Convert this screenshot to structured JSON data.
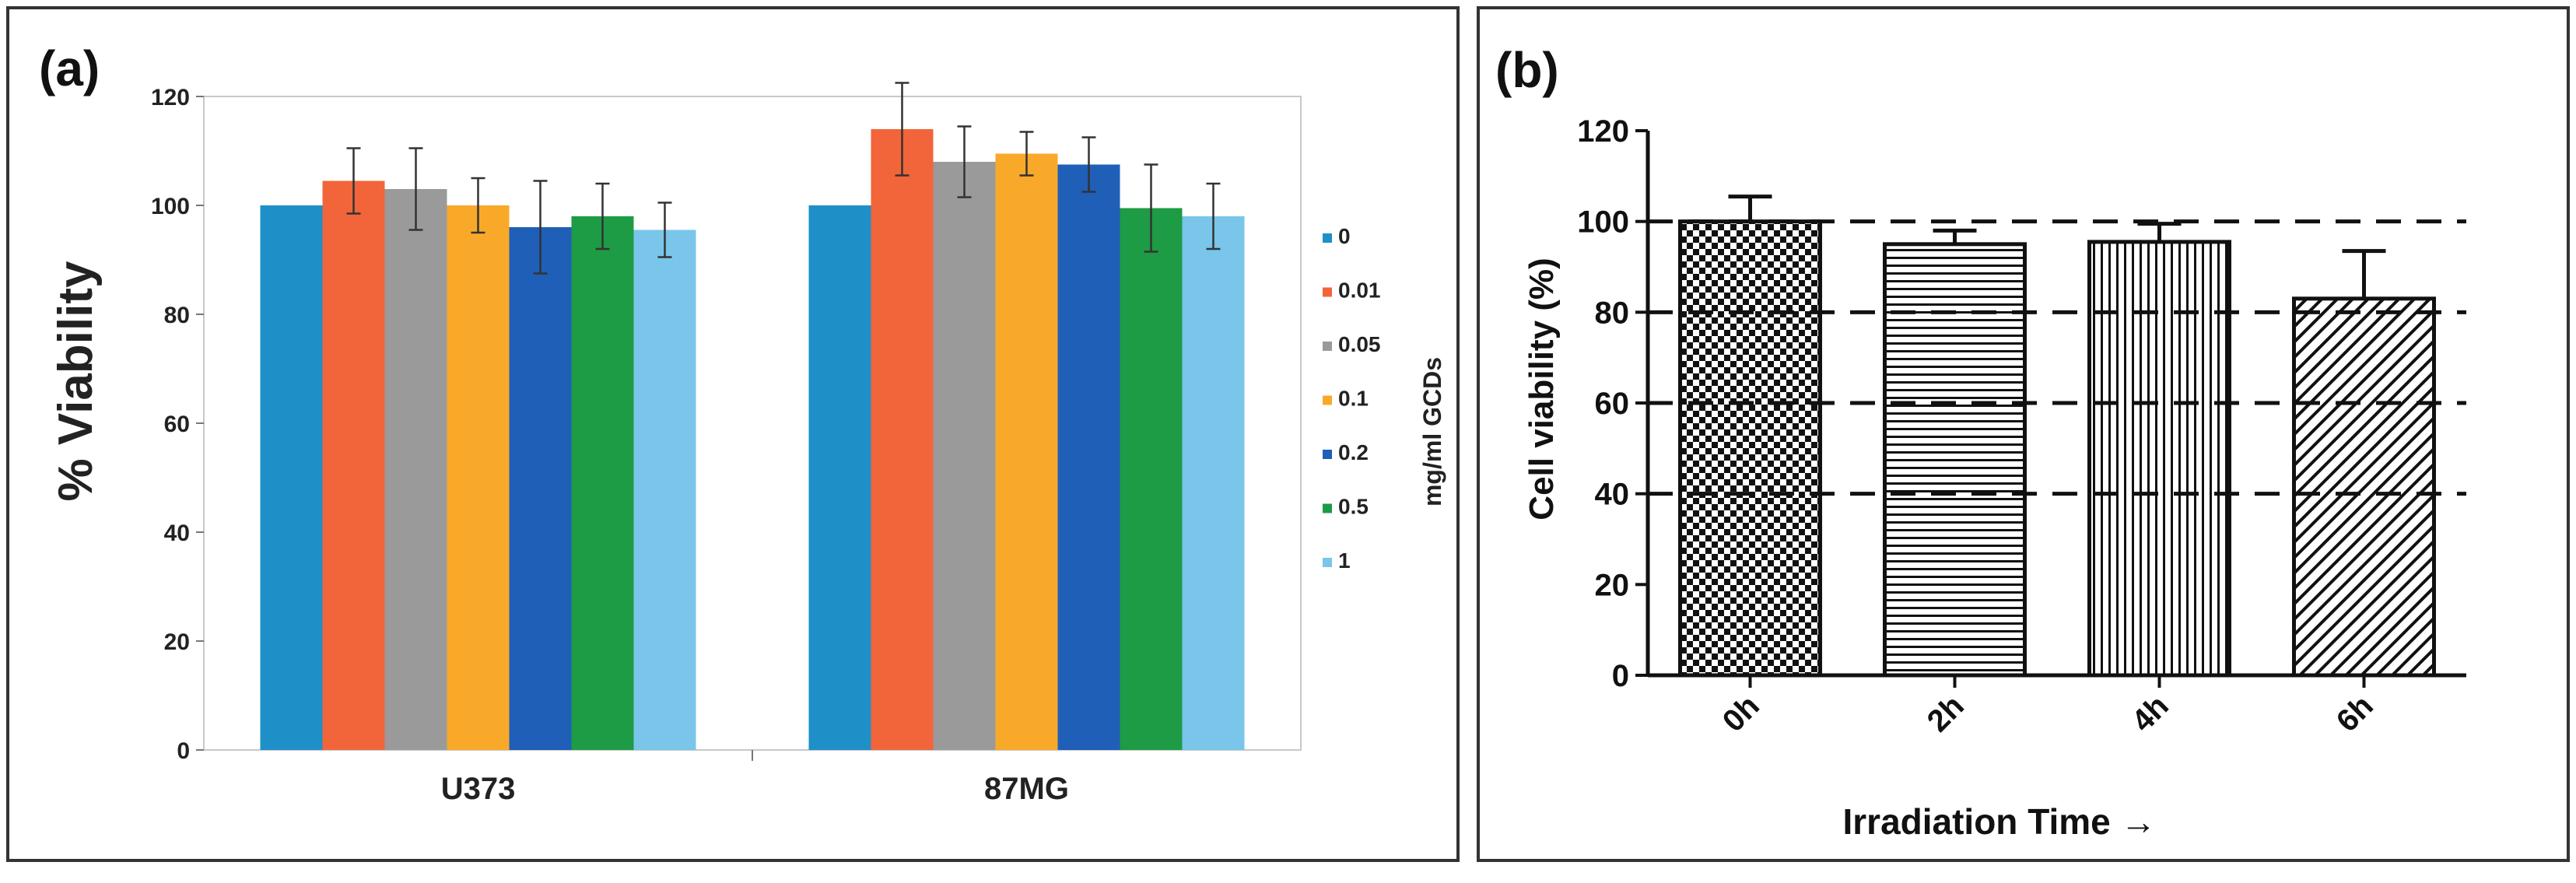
{
  "chart_data": [
    {
      "panel_label": "(a)",
      "type": "bar",
      "title": "",
      "xlabel": "",
      "ylabel": "% Viability",
      "ylim": [
        0,
        120
      ],
      "yticks": [
        0,
        20,
        40,
        60,
        80,
        100,
        120
      ],
      "grid": false,
      "categories": [
        "U373",
        "87MG"
      ],
      "legend_title": "mg/ml GCDs",
      "legend_position": "right",
      "series": [
        {
          "name": "0",
          "color": "#1f8fc8",
          "values": [
            100,
            100
          ],
          "errors": [
            0,
            0
          ]
        },
        {
          "name": "0.01",
          "color": "#f2653a",
          "values": [
            104.5,
            114
          ],
          "errors": [
            6,
            8.5
          ]
        },
        {
          "name": "0.05",
          "color": "#9a9a9a",
          "values": [
            103,
            108
          ],
          "errors": [
            7.5,
            6.5
          ]
        },
        {
          "name": "0.1",
          "color": "#f9a92a",
          "values": [
            100,
            109.5
          ],
          "errors": [
            5,
            4
          ]
        },
        {
          "name": "0.2",
          "color": "#1f5fb8",
          "values": [
            96,
            107.5
          ],
          "errors": [
            8.5,
            5
          ]
        },
        {
          "name": "0.5",
          "color": "#1e9b45",
          "values": [
            98,
            99.5
          ],
          "errors": [
            6,
            8
          ]
        },
        {
          "name": "1",
          "color": "#79c6ea",
          "values": [
            95.5,
            98
          ],
          "errors": [
            5,
            6
          ]
        }
      ]
    },
    {
      "panel_label": "(b)",
      "type": "bar",
      "title": "",
      "xlabel": "Irradiation Time →",
      "ylabel": "Cell viability (%)",
      "ylim": [
        0,
        120
      ],
      "yticks": [
        0,
        20,
        40,
        60,
        80,
        100,
        120
      ],
      "grid": false,
      "reference_lines": [
        40,
        60,
        80,
        100
      ],
      "categories": [
        "0h",
        "2h",
        "4h",
        "6h"
      ],
      "values": [
        100,
        95,
        95.5,
        83
      ],
      "errors": [
        5.5,
        3,
        4,
        10.5
      ],
      "patterns": [
        "checker",
        "horizontal",
        "vertical",
        "diagonal"
      ]
    }
  ]
}
